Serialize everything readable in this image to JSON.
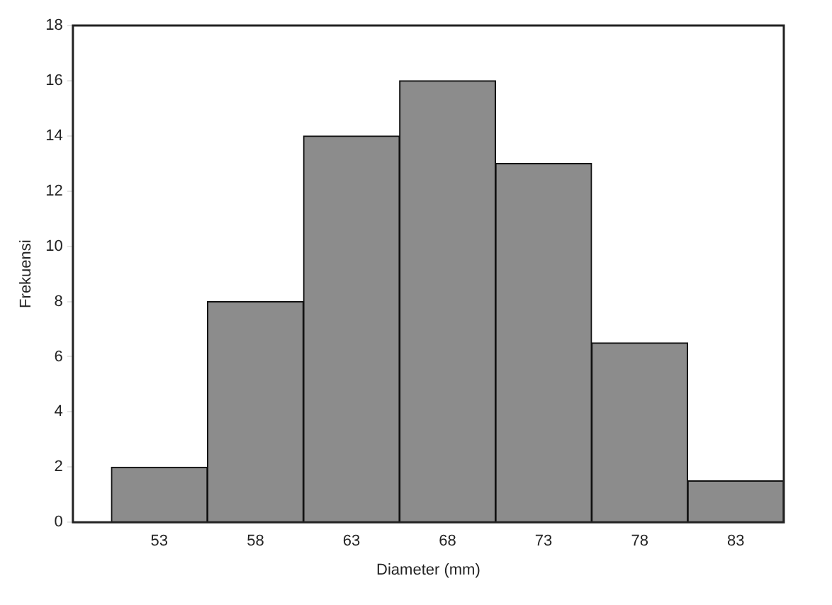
{
  "chart_data": {
    "type": "histogram",
    "xlabel": "Diameter (mm)",
    "ylabel": "Frekuensi",
    "bins": [
      50.5,
      55.5,
      60.5,
      65.5,
      70.5,
      75.5,
      80.5,
      85.5
    ],
    "values": [
      2,
      8,
      14,
      16,
      13,
      6.5,
      1.5
    ],
    "color": "#8c8c8c",
    "xlim": [
      48.5,
      85.5
    ],
    "xticks": [
      53,
      58,
      63,
      68,
      73,
      78,
      83
    ],
    "ylim": [
      0,
      18
    ],
    "yticks": [
      0,
      2,
      4,
      6,
      8,
      10,
      12,
      14,
      16,
      18
    ],
    "grid": false,
    "legend": false
  }
}
